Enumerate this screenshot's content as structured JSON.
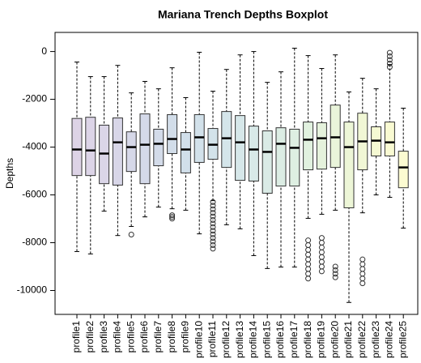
{
  "chart_data": {
    "type": "boxplot",
    "title": "Mariana Trench Depths Boxplot",
    "y_label": "Depths",
    "categories": [
      "profile1",
      "profile2",
      "profile3",
      "profile4",
      "profile5",
      "profile6",
      "profile7",
      "profile8",
      "profile9",
      "profile10",
      "profile11",
      "profile12",
      "profile13",
      "profile14",
      "profile15",
      "profile16",
      "profile17",
      "profile18",
      "profile19",
      "profile20",
      "profile21",
      "profile22",
      "profile23",
      "profile24",
      "profile25"
    ],
    "colors": [
      "#ddd3e6",
      "#dcd4e7",
      "#dad5e7",
      "#d8d6e8",
      "#d6d8e8",
      "#d4d9e9",
      "#d3dbe9",
      "#d2dde9",
      "#d1dfea",
      "#d2e1ea",
      "#d3e3ea",
      "#d4e5ea",
      "#d6e7e9",
      "#d8e9e8",
      "#daebe6",
      "#dcede4",
      "#deefe2",
      "#e1f1df",
      "#e5f2dc",
      "#e9f4da",
      "#edf6d7",
      "#f1f7d5",
      "#f5f9d3",
      "#f9fad2",
      "#fcfbd1"
    ],
    "low": [
      -8370,
      -8470,
      -6680,
      -7700,
      -7320,
      -6920,
      -6510,
      -6580,
      -6640,
      -7630,
      -6240,
      -7250,
      -7420,
      -8540,
      -9080,
      -9020,
      -9020,
      -6980,
      -6810,
      -6640,
      -10500,
      -6750,
      -6000,
      -6100,
      -7390
    ],
    "q1": [
      -5190,
      -5190,
      -5530,
      -5590,
      -5020,
      -5530,
      -4780,
      -4270,
      -5080,
      -4640,
      -4510,
      -4850,
      -5390,
      -5420,
      -5930,
      -5630,
      -5630,
      -4950,
      -4920,
      -4850,
      -6540,
      -4950,
      -4370,
      -4370,
      -5700
    ],
    "median": [
      -4100,
      -4140,
      -4270,
      -3800,
      -4000,
      -3900,
      -3860,
      -3660,
      -4100,
      -3590,
      -3900,
      -3630,
      -3800,
      -4100,
      -4200,
      -3860,
      -4030,
      -3690,
      -3630,
      -3590,
      -4000,
      -3760,
      -3730,
      -3800,
      -4850
    ],
    "q3": [
      -2800,
      -2750,
      -3080,
      -2780,
      -3360,
      -2610,
      -3250,
      -2640,
      -3390,
      -2640,
      -3220,
      -2510,
      -2680,
      -3120,
      -3320,
      -3190,
      -3250,
      -2950,
      -2980,
      -2240,
      -2950,
      -2580,
      -3150,
      -2950,
      -4170
    ],
    "high": [
      -440,
      -1050,
      -1050,
      -580,
      -1730,
      -1250,
      -1560,
      -680,
      -1930,
      -30,
      -1660,
      -750,
      -140,
      0,
      -1290,
      -850,
      140,
      -170,
      -710,
      -140,
      -1690,
      -1120,
      -1560,
      -540,
      -2370
    ],
    "outliers": [
      [],
      [],
      [],
      [],
      [
        -7660
      ],
      [],
      [],
      [
        -6850,
        -6920,
        -6990
      ],
      [],
      [],
      [
        -6300,
        -6450,
        -6600,
        -6750,
        -6900,
        -7050,
        -7200,
        -7350,
        -7500,
        -7650,
        -7800,
        -7950,
        -8100,
        -8250
      ],
      [],
      [],
      [],
      [],
      [],
      [],
      [
        -7900,
        -8100,
        -8300,
        -8500,
        -8700,
        -8900,
        -9100,
        -9300,
        -9500
      ],
      [
        -7800,
        -8000,
        -8200,
        -8400,
        -8600,
        -8800,
        -9000,
        -9200
      ],
      [
        -9000,
        -9150,
        -9300,
        -9450
      ],
      [],
      [
        -8700,
        -8900,
        -9100,
        -9300,
        -9500,
        -9700
      ],
      [],
      [
        -50,
        -200,
        -350,
        -500,
        -650
      ],
      []
    ],
    "ylim": [
      -11000,
      800
    ],
    "yticks": [
      -10000,
      -8000,
      -6000,
      -4000,
      -2000,
      0
    ]
  }
}
